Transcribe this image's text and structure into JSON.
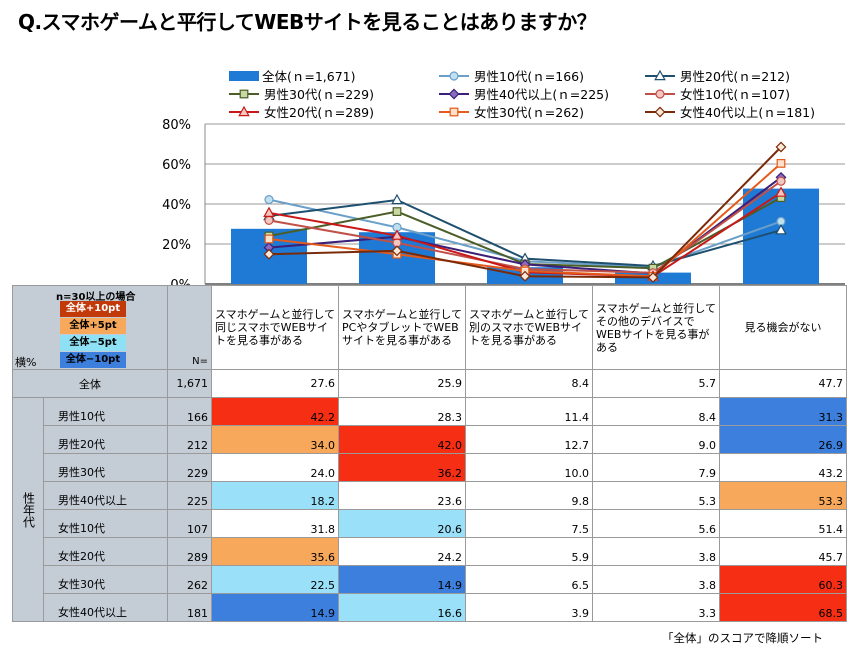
{
  "title": "Q.スマホゲームと平行してWEBサイトを見ることはありますか？",
  "chart_data": {
    "type": "bar",
    "categories": [
      "スマホゲームと並行して同じスマホでWEBサイトを見る事がある",
      "スマホゲームと並行してPCやタブレットでWEBサイトを見る事がある",
      "スマホゲームと並行して別のスマホでWEBサイトを見る事がある",
      "スマホゲームと並行してその他のデバイスでWEBサイトを見る事がある",
      "見る機会がない"
    ],
    "yticks": [
      "80%",
      "60%",
      "40%",
      "20%",
      "0%"
    ],
    "ylim": [
      0,
      80
    ],
    "series": [
      {
        "name": "全体(ｎ=1,671)",
        "type": "bar",
        "color": "#1f7ad6",
        "values": [
          27.6,
          25.9,
          8.4,
          5.7,
          47.7
        ]
      },
      {
        "name": "男性10代(ｎ=166)",
        "type": "line",
        "color": "#6a9fc8",
        "fill": "#bfe0f0",
        "marker": "circle",
        "values": [
          42.2,
          28.3,
          11.4,
          8.4,
          31.3
        ]
      },
      {
        "name": "男性20代(ｎ=212)",
        "type": "line",
        "color": "#1d4f6e",
        "fill": "#ffffff",
        "marker": "triangle",
        "values": [
          34.0,
          42.0,
          12.7,
          9.0,
          26.9
        ]
      },
      {
        "name": "男性30代(ｎ=229)",
        "type": "line",
        "color": "#4b5e28",
        "fill": "#c8d8a0",
        "marker": "square",
        "values": [
          24.0,
          36.2,
          10.0,
          7.9,
          43.2
        ]
      },
      {
        "name": "男性40代以上(ｎ=225)",
        "type": "line",
        "color": "#3b1f78",
        "fill": "#8a6bc0",
        "marker": "diamond",
        "values": [
          18.2,
          23.6,
          9.8,
          5.3,
          53.3
        ]
      },
      {
        "name": "女性10代(ｎ=107)",
        "type": "line",
        "color": "#c05048",
        "fill": "#f4c6c0",
        "marker": "circle",
        "values": [
          31.8,
          20.6,
          7.5,
          5.6,
          51.4
        ]
      },
      {
        "name": "女性20代(ｎ=289)",
        "type": "line",
        "color": "#c81818",
        "fill": "#f4c6c0",
        "marker": "triangle",
        "values": [
          35.6,
          24.2,
          5.9,
          3.8,
          45.7
        ]
      },
      {
        "name": "女性30代(ｎ=262)",
        "type": "line",
        "color": "#e35a1a",
        "fill": "#ffe0c8",
        "marker": "square",
        "values": [
          22.5,
          14.9,
          6.5,
          3.8,
          60.3
        ]
      },
      {
        "name": "女性40代以上(ｎ=181)",
        "type": "line",
        "color": "#7a2a08",
        "fill": "#f8e8d8",
        "marker": "diamond",
        "values": [
          14.9,
          16.6,
          3.9,
          3.3,
          68.5
        ]
      }
    ]
  },
  "table": {
    "corner_label": "横%",
    "n_header": "N=",
    "group_label": "性年代",
    "headers": [
      "スマホゲームと並行して同じスマホでWEBサイトを見る事がある",
      "スマホゲームと並行してPCやタブレットでWEBサイトを見る事がある",
      "スマホゲームと並行して別のスマホでWEBサイトを見る事がある",
      "スマホゲームと並行してその他のデバイスでWEBサイトを見る事がある",
      "見る機会がない"
    ],
    "key": {
      "title": "n=30以上の場合",
      "items": [
        {
          "label": "全体+10pt",
          "color": "#c23a0a"
        },
        {
          "label": "全体+5pt",
          "color": "#f7a85a"
        },
        {
          "label": "全体−5pt",
          "color": "#8ee0f4"
        },
        {
          "label": "全体−10pt",
          "color": "#3c7fdc"
        }
      ]
    },
    "total_row": {
      "label": "全体",
      "n": "1,671",
      "values": [
        "27.6",
        "25.9",
        "8.4",
        "5.7",
        "47.7"
      ]
    },
    "rows": [
      {
        "label": "男性10代",
        "n": "166",
        "values": [
          "42.2",
          "28.3",
          "11.4",
          "8.4",
          "31.3"
        ],
        "colors": [
          "#f52e14",
          "",
          "",
          "",
          "#3c7fdc"
        ]
      },
      {
        "label": "男性20代",
        "n": "212",
        "values": [
          "34.0",
          "42.0",
          "12.7",
          "9.0",
          "26.9"
        ],
        "colors": [
          "#f7a85a",
          "#f52e14",
          "",
          "",
          "#3c7fdc"
        ]
      },
      {
        "label": "男性30代",
        "n": "229",
        "values": [
          "24.0",
          "36.2",
          "10.0",
          "7.9",
          "43.2"
        ],
        "colors": [
          "",
          "#f52e14",
          "",
          "",
          ""
        ]
      },
      {
        "label": "男性40代以上",
        "n": "225",
        "values": [
          "18.2",
          "23.6",
          "9.8",
          "5.3",
          "53.3"
        ],
        "colors": [
          "#9ae0f8",
          "",
          "",
          "",
          "#f7a85a"
        ]
      },
      {
        "label": "女性10代",
        "n": "107",
        "values": [
          "31.8",
          "20.6",
          "7.5",
          "5.6",
          "51.4"
        ],
        "colors": [
          "",
          "#9ae0f8",
          "",
          "",
          ""
        ]
      },
      {
        "label": "女性20代",
        "n": "289",
        "values": [
          "35.6",
          "24.2",
          "5.9",
          "3.8",
          "45.7"
        ],
        "colors": [
          "#f7a85a",
          "",
          "",
          "",
          ""
        ]
      },
      {
        "label": "女性30代",
        "n": "262",
        "values": [
          "22.5",
          "14.9",
          "6.5",
          "3.8",
          "60.3"
        ],
        "colors": [
          "#9ae0f8",
          "#3c7fdc",
          "",
          "",
          "#f52e14"
        ]
      },
      {
        "label": "女性40代以上",
        "n": "181",
        "values": [
          "14.9",
          "16.6",
          "3.9",
          "3.3",
          "68.5"
        ],
        "colors": [
          "#3c7fdc",
          "#9ae0f8",
          "",
          "",
          "#f52e14"
        ]
      }
    ]
  },
  "note": "「全体」のスコアで降順ソート"
}
